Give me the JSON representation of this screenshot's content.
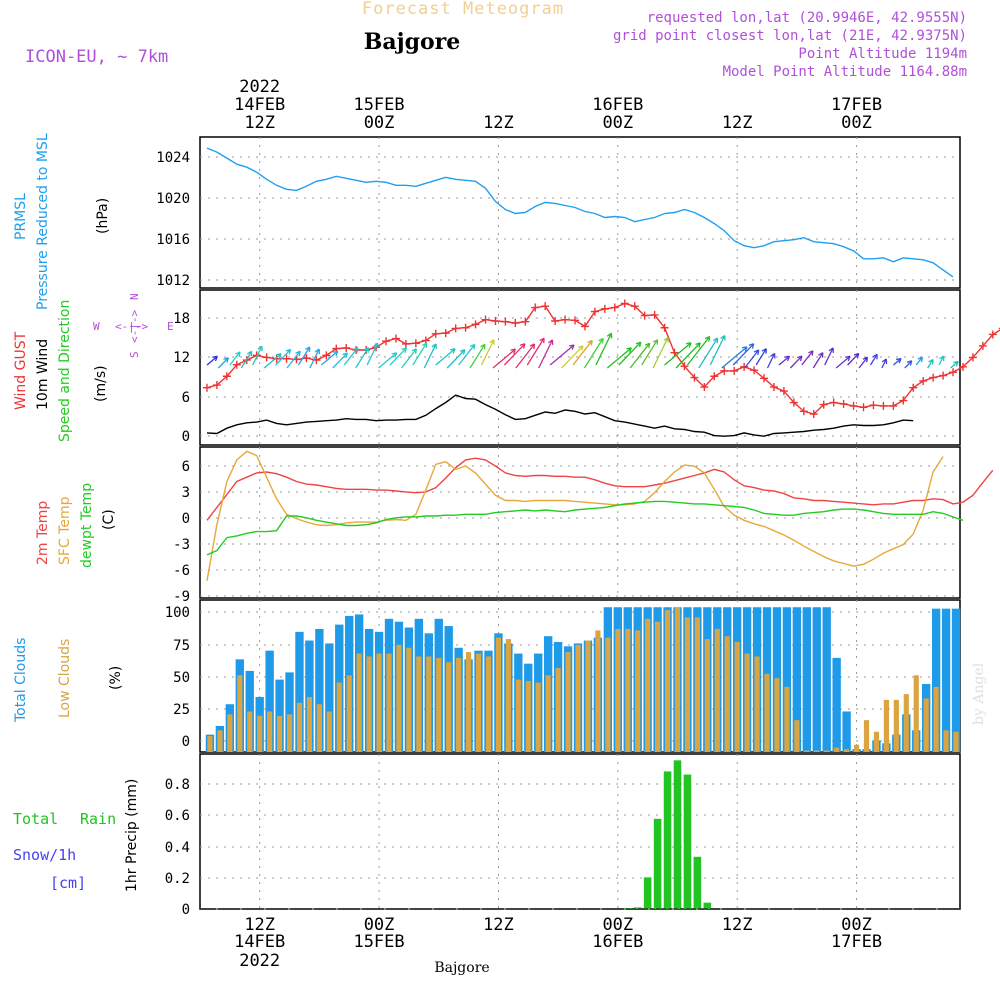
{
  "header": {
    "main_title": "Forecast Meteogram",
    "location": "Bajgore",
    "model": "ICON-EU, ~ 7km",
    "requested": "requested lon,lat (20.9946E, 42.9555N)",
    "grid_point": "grid point closest lon,lat (21E, 42.9375N)",
    "point_altitude": "Point Altitude 1194m",
    "model_altitude": "Model Point Altitude 1164.88m",
    "bottom_label": "Bajgore",
    "watermark": "by Angel"
  },
  "time_axis": {
    "top_year": "2022",
    "ticks": [
      {
        "t": 12,
        "hour": "12Z",
        "date": "14FEB",
        "year": "2022"
      },
      {
        "t": 24,
        "hour": "00Z",
        "date": "15FEB"
      },
      {
        "t": 36,
        "hour": "12Z",
        "date": ""
      },
      {
        "t": 48,
        "hour": "00Z",
        "date": "16FEB"
      },
      {
        "t": 60,
        "hour": "12Z",
        "date": ""
      },
      {
        "t": 72,
        "hour": "00Z",
        "date": "17FEB"
      }
    ]
  },
  "colors": {
    "pressure": "#1ea0ee",
    "gust": "#ee3333",
    "wind": "#000000",
    "t2m": "#ee4444",
    "tsfc": "#e8a838",
    "dewpt": "#22cc22",
    "total_clouds": "#1e9ae8",
    "low_clouds": "#d9a441",
    "rain": "#22c422",
    "snow": "#4444ee",
    "meta": "#b050d8",
    "title": "#f0d090"
  },
  "chart_data": [
    {
      "type": "line",
      "id": "pressure",
      "ylabel_main": "PRMSL",
      "ylabel_sub": "Pressure Reduced to MSL",
      "unit": "(hPa)",
      "yticks": [
        "1024",
        "1020",
        "1016",
        "1012"
      ],
      "ylim": [
        1011,
        1026
      ],
      "x_start": 6.7,
      "x_step": 1,
      "series": [
        {
          "name": "PRMSL",
          "values": [
            1024.9,
            1024.5,
            1023.9,
            1023.3,
            1023.0,
            1022.5,
            1021.8,
            1021.2,
            1020.8,
            1020.7,
            1021.1,
            1021.6,
            1021.8,
            1022.1,
            1021.9,
            1021.7,
            1021.5,
            1021.6,
            1021.5,
            1021.2,
            1021.2,
            1021.1,
            1021.4,
            1021.7,
            1022.0,
            1021.8,
            1021.7,
            1021.6,
            1020.9,
            1019.6,
            1018.8,
            1018.4,
            1018.5,
            1019.1,
            1019.5,
            1019.4,
            1019.2,
            1019.0,
            1018.6,
            1018.4,
            1018.0,
            1018.1,
            1018.0,
            1017.6,
            1017.8,
            1018.0,
            1018.4,
            1018.5,
            1018.8,
            1018.5,
            1018.0,
            1017.4,
            1016.7,
            1015.7,
            1015.2,
            1015.0,
            1015.2,
            1015.6,
            1015.7,
            1015.8,
            1016.0,
            1015.6,
            1015.5,
            1015.4,
            1015.1,
            1014.7,
            1013.9,
            1013.9,
            1014.0,
            1013.6,
            1014.0,
            1013.9,
            1013.8,
            1013.5,
            1012.8,
            1012.1
          ]
        }
      ]
    },
    {
      "type": "line",
      "id": "wind",
      "ylabel_gust": "Wind GUST",
      "ylabel_wind": "10m Wind",
      "ylabel_dir": "Speed and Direction",
      "unit": "(m/s)",
      "compass": {
        "n": "N",
        "s": "S",
        "w": "W",
        "e": "E",
        "arrow": "<-|->"
      },
      "yticks": [
        "18",
        "12",
        "6",
        "0"
      ],
      "ylim": [
        -1,
        22
      ],
      "x_start": 6.7,
      "x_step": 1,
      "series": [
        {
          "name": "Wind GUST",
          "values": [
            7.5,
            7.9,
            9.2,
            10.9,
            11.6,
            12.3,
            12.0,
            11.8,
            11.8,
            11.7,
            11.9,
            11.6,
            12.3,
            13.3,
            13.4,
            13.1,
            13.1,
            13.5,
            14.4,
            14.8,
            14.0,
            14.1,
            14.5,
            15.5,
            15.6,
            16.3,
            16.4,
            16.9,
            17.6,
            17.4,
            17.3,
            17.1,
            17.3,
            19.4,
            19.6,
            17.4,
            17.6,
            17.5,
            16.6,
            18.8,
            19.2,
            19.4,
            20.0,
            19.6,
            18.2,
            18.3,
            16.4,
            12.7,
            10.7,
            9.0,
            7.6,
            9.2,
            10.0,
            10.0,
            10.6,
            10.1,
            8.9,
            7.6,
            7.0,
            5.3,
            4.0,
            3.6,
            5.0,
            5.3,
            5.1,
            4.8,
            4.6,
            4.9,
            4.8,
            4.8,
            5.6,
            7.5,
            8.5,
            9.0,
            9.3,
            9.8,
            10.6,
            12.0,
            13.7,
            15.4,
            16.3
          ]
        },
        {
          "name": "10m Wind",
          "values": [
            0.8,
            0.7,
            1.5,
            2.0,
            2.3,
            2.4,
            2.7,
            2.2,
            2.0,
            2.2,
            2.4,
            2.5,
            2.6,
            2.7,
            2.9,
            2.8,
            2.8,
            2.6,
            2.7,
            2.7,
            2.8,
            2.8,
            3.4,
            4.4,
            5.3,
            6.4,
            5.9,
            5.8,
            5.0,
            4.3,
            3.5,
            2.8,
            2.9,
            3.4,
            3.9,
            3.7,
            4.2,
            4.0,
            3.6,
            3.8,
            3.2,
            2.6,
            2.4,
            2.1,
            1.8,
            1.5,
            1.8,
            1.4,
            1.3,
            1.0,
            0.9,
            0.4,
            0.3,
            0.4,
            0.8,
            0.5,
            0.3,
            0.7,
            0.8,
            0.9,
            1.0,
            1.2,
            1.3,
            1.5,
            1.8,
            2.0,
            1.9,
            1.9,
            2.0,
            2.3,
            2.7,
            2.6
          ]
        },
        {
          "name": "Direction",
          "arrow_colors": [
            "#3030e0",
            "#20a0f0",
            "#20d0d0",
            "#20c0c0",
            "#20c8c8",
            "#20c0c0",
            "#20c0e0",
            "#20b8e0",
            "#20a8e8",
            "#20a8e8",
            "#20a8e8",
            "#20c0d8",
            "#20c8c8",
            "#20c8c8",
            "#20c8d0",
            "#20c8d0",
            "#20d0c8",
            "#20d0c0",
            "#20d8b0",
            "#20c0c0",
            "#20c0c8",
            "#20c0c8",
            "#20c8c8",
            "#40d040",
            "#c0d030",
            "#e03070",
            "#e03060",
            "#e03070",
            "#e03070",
            "#c03090",
            "#a030b0",
            "#d0d030",
            "#e0a030",
            "#40d040",
            "#20c020",
            "#20c020",
            "#20c020",
            "#40c020",
            "#60c030",
            "#a0d030",
            "#20c020",
            "#20c020",
            "#20c020",
            "#20c0c0",
            "#20c0c0",
            "#2080e0",
            "#3060e0",
            "#3050e0",
            "#3040e0",
            "#4040e0",
            "#6030d0",
            "#7030c0",
            "#8030c0",
            "#7030c0",
            "#6030d0",
            "#6030d0",
            "#5030d0",
            "#5030d0",
            "#4040e0",
            "#4040e0",
            "#3050e0",
            "#3060e0",
            "#20a0f0",
            "#20c0c0",
            "#20c8c8",
            "#20c0c0"
          ]
        }
      ]
    },
    {
      "type": "line",
      "id": "temperature",
      "ylabel_t2m": "2m Temp",
      "ylabel_tsfc": "SFC Temp",
      "ylabel_dew": "dewpt Temp",
      "unit": "(C)",
      "yticks": [
        "6",
        "3",
        "0",
        "-3",
        "-6",
        "-9"
      ],
      "ylim": [
        -10,
        7.5
      ],
      "x_start": 6.7,
      "x_step": 1,
      "series": [
        {
          "name": "2m Temp",
          "values": [
            -1.0,
            0.5,
            2.0,
            3.5,
            4.0,
            4.5,
            4.6,
            4.4,
            4.0,
            3.5,
            3.2,
            3.1,
            2.9,
            2.7,
            2.6,
            2.6,
            2.6,
            2.5,
            2.5,
            2.4,
            2.3,
            2.2,
            2.3,
            2.8,
            3.9,
            5.1,
            6.0,
            6.2,
            6.0,
            5.3,
            4.5,
            4.2,
            4.1,
            4.2,
            4.2,
            4.1,
            4.1,
            4.0,
            4.0,
            3.7,
            3.3,
            3.0,
            2.9,
            2.9,
            2.9,
            3.1,
            3.3,
            3.6,
            3.9,
            4.2,
            4.5,
            4.9,
            4.6,
            3.7,
            3.0,
            2.8,
            2.5,
            2.4,
            2.1,
            1.6,
            1.5,
            1.3,
            1.3,
            1.2,
            1.1,
            1.0,
            0.9,
            0.8,
            0.9,
            0.9,
            1.1,
            1.3,
            1.3,
            1.5,
            1.4,
            0.9,
            1.1,
            1.9,
            3.4,
            4.8
          ]
        },
        {
          "name": "SFC Temp",
          "values": [
            -8.0,
            -1.5,
            3.5,
            6.0,
            7.0,
            6.5,
            4.0,
            1.5,
            -0.3,
            -0.8,
            -1.2,
            -1.5,
            -1.6,
            -1.5,
            -1.3,
            -1.2,
            -1.2,
            -1.2,
            -1.0,
            -0.9,
            -1.0,
            -0.3,
            2.5,
            5.5,
            5.8,
            4.9,
            5.3,
            4.5,
            3.2,
            1.9,
            1.3,
            1.3,
            1.2,
            1.3,
            1.3,
            1.3,
            1.3,
            1.2,
            1.1,
            1.0,
            0.9,
            0.8,
            0.8,
            0.9,
            1.2,
            2.2,
            3.5,
            4.6,
            5.4,
            5.3,
            4.5,
            2.6,
            0.6,
            -0.4,
            -1.0,
            -1.4,
            -1.7,
            -2.2,
            -2.7,
            -3.3,
            -4.0,
            -4.6,
            -5.2,
            -5.7,
            -6.0,
            -6.3,
            -6.1,
            -5.5,
            -4.8,
            -4.3,
            -3.8,
            -2.6,
            0.2,
            4.6,
            6.4
          ]
        },
        {
          "name": "dewpt Temp",
          "values": [
            -5.0,
            -4.5,
            -3.0,
            -2.8,
            -2.5,
            -2.3,
            -2.3,
            -2.2,
            -0.5,
            -0.5,
            -0.7,
            -1.0,
            -1.2,
            -1.4,
            -1.6,
            -1.6,
            -1.5,
            -1.3,
            -0.9,
            -0.7,
            -0.6,
            -0.6,
            -0.5,
            -0.5,
            -0.4,
            -0.4,
            -0.3,
            -0.3,
            -0.3,
            -0.1,
            0.0,
            0.1,
            0.2,
            0.1,
            0.2,
            0.1,
            0.0,
            0.2,
            0.3,
            0.4,
            0.5,
            0.7,
            0.9,
            1.0,
            1.1,
            1.2,
            1.2,
            1.1,
            1.0,
            0.9,
            0.9,
            0.8,
            0.7,
            0.6,
            0.5,
            0.2,
            -0.2,
            -0.3,
            -0.4,
            -0.4,
            -0.2,
            -0.1,
            0.0,
            0.2,
            0.3,
            0.3,
            0.2,
            0.0,
            -0.2,
            -0.3,
            -0.3,
            -0.3,
            -0.3,
            0.0,
            -0.2,
            -0.6,
            -1.0
          ]
        }
      ]
    },
    {
      "type": "bar",
      "id": "clouds",
      "ylabel_total": "Total Clouds",
      "ylabel_low": "Low Clouds",
      "unit": "(%)",
      "yticks": [
        "100",
        "75",
        "50",
        "25",
        "0"
      ],
      "ylim": [
        0,
        105
      ],
      "x_start": 7,
      "x_step": 1,
      "series": [
        {
          "name": "Total Clouds",
          "values": [
            12,
            18,
            33,
            64,
            56,
            38,
            70,
            50,
            55,
            83,
            77,
            85,
            75,
            88,
            94,
            95,
            85,
            83,
            92,
            90,
            86,
            92,
            82,
            92,
            87,
            72,
            64,
            70,
            70,
            82,
            75,
            68,
            61,
            68,
            80,
            76,
            73,
            75,
            77,
            79,
            100,
            100,
            100,
            100,
            100,
            100,
            100,
            100,
            100,
            100,
            100,
            100,
            100,
            100,
            100,
            100,
            100,
            100,
            100,
            100,
            100,
            100,
            100,
            65,
            28,
            2,
            2,
            8,
            6,
            12,
            26,
            15,
            47,
            99,
            99,
            99,
            63,
            86,
            99,
            86
          ]
        },
        {
          "name": "Low Clouds",
          "values": [
            11,
            15,
            26,
            53,
            28,
            25,
            28,
            25,
            26,
            34,
            38,
            33,
            28,
            48,
            53,
            68,
            66,
            68,
            68,
            74,
            72,
            66,
            66,
            65,
            62,
            65,
            69,
            68,
            66,
            79,
            78,
            50,
            49,
            48,
            53,
            58,
            69,
            74,
            77,
            84,
            79,
            85,
            85,
            84,
            92,
            90,
            98,
            100,
            93,
            93,
            78,
            85,
            80,
            76,
            68,
            66,
            54,
            51,
            45,
            22,
            1,
            1,
            1,
            3,
            2,
            5,
            22,
            14,
            36,
            36,
            40,
            53,
            37,
            45,
            15,
            14,
            15,
            7
          ]
        }
      ]
    },
    {
      "type": "bar",
      "id": "precip",
      "ylabel_total": "Total",
      "ylabel_rain": "Rain",
      "ylabel_snow": "Snow/1h",
      "ylabel_cm": "[cm]",
      "unit": "1hr Precip (mm)",
      "yticks": [
        "0.8",
        "0.6",
        "0.4",
        "0.2",
        "0"
      ],
      "ylim": [
        0,
        0.98
      ],
      "x_start": 7,
      "x_step": 1,
      "series": [
        {
          "name": "Total Rain",
          "values": [
            0,
            0,
            0,
            0,
            0,
            0,
            0,
            0,
            0,
            0,
            0,
            0,
            0,
            0,
            0,
            0,
            0,
            0,
            0,
            0,
            0,
            0,
            0,
            0,
            0,
            0,
            0,
            0,
            0,
            0,
            0,
            0,
            0,
            0,
            0,
            0,
            0,
            0,
            0,
            0,
            0,
            0,
            0.005,
            0.01,
            0.2,
            0.57,
            0.87,
            0.94,
            0.85,
            0.33,
            0.04,
            0,
            0,
            0,
            0,
            0,
            0,
            0,
            0,
            0,
            0,
            0,
            0,
            0,
            0,
            0,
            0,
            0,
            0,
            0,
            0,
            0,
            0,
            0,
            0,
            0,
            0,
            0
          ]
        },
        {
          "name": "Snow/1h",
          "values": []
        }
      ]
    }
  ]
}
